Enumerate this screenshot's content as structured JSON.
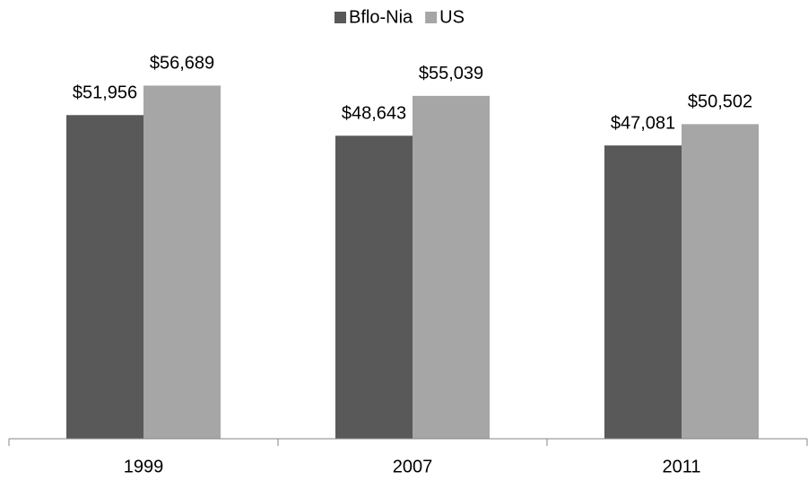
{
  "chart_data": {
    "type": "bar",
    "categories": [
      "1999",
      "2007",
      "2011"
    ],
    "series": [
      {
        "name": "Bflo-Nia",
        "color": "#595959",
        "values": [
          51956,
          48643,
          47081
        ],
        "value_labels": [
          "$51,956",
          "$48,643",
          "$47,081"
        ]
      },
      {
        "name": "US",
        "color": "#a6a6a6",
        "values": [
          56689,
          55039,
          50502
        ],
        "value_labels": [
          "$56,689",
          "$55,039",
          "$50,502"
        ]
      }
    ],
    "ylim": [
      0,
      70000
    ],
    "legend": "top"
  }
}
